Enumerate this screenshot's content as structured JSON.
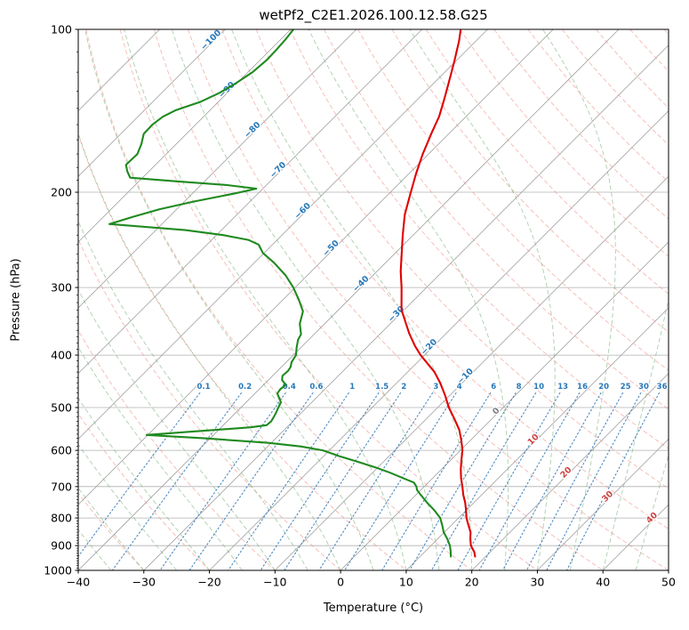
{
  "chart_data": {
    "type": "skewt",
    "title": "wetPf2_C2E1.2026.100.12.58.G25",
    "xlabel": "Temperature (°C)",
    "ylabel": "Pressure (hPa)",
    "xlim": [
      -40,
      50
    ],
    "plim": [
      100,
      1000
    ],
    "x_ticks": [
      -40,
      -30,
      -20,
      -10,
      0,
      10,
      20,
      30,
      40,
      50
    ],
    "p_ticks": [
      100,
      200,
      300,
      400,
      500,
      600,
      700,
      800,
      900,
      1000
    ],
    "skew_degrees": 45,
    "isotherms": {
      "start": -110,
      "end": 50,
      "step": 10
    },
    "isotherm_labels": [
      -100,
      -90,
      -80,
      -70,
      -60,
      -50,
      -40,
      -30,
      -20,
      -10,
      0,
      10,
      20,
      30,
      40
    ],
    "mixing_ratios_g_kg": [
      0.1,
      0.2,
      0.4,
      0.6,
      1,
      1.5,
      2,
      3,
      4,
      6,
      8,
      10,
      13,
      16,
      20,
      25,
      30,
      36
    ],
    "dry_adiabats_theta_c": {
      "start": -40,
      "end": 200,
      "step": 10
    },
    "moist_adiabats_t0_c": {
      "start": -40,
      "end": 45,
      "step": 5
    },
    "temperature_profile_p_t": [
      [
        943,
        18.4
      ],
      [
        925,
        17.6
      ],
      [
        900,
        16.1
      ],
      [
        875,
        15.0
      ],
      [
        850,
        14.0
      ],
      [
        825,
        12.6
      ],
      [
        800,
        11.2
      ],
      [
        775,
        10.0
      ],
      [
        750,
        8.7
      ],
      [
        725,
        7.2
      ],
      [
        700,
        5.8
      ],
      [
        675,
        4.3
      ],
      [
        650,
        2.9
      ],
      [
        625,
        1.6
      ],
      [
        600,
        0.3
      ],
      [
        575,
        -1.4
      ],
      [
        550,
        -3.3
      ],
      [
        525,
        -5.7
      ],
      [
        500,
        -8.3
      ],
      [
        475,
        -10.7
      ],
      [
        450,
        -13.4
      ],
      [
        430,
        -15.9
      ],
      [
        415,
        -18.2
      ],
      [
        400,
        -20.6
      ],
      [
        385,
        -22.8
      ],
      [
        365,
        -25.6
      ],
      [
        350,
        -27.6
      ],
      [
        330,
        -30.4
      ],
      [
        300,
        -33.8
      ],
      [
        280,
        -36.4
      ],
      [
        260,
        -38.9
      ],
      [
        240,
        -41.6
      ],
      [
        220,
        -44.4
      ],
      [
        200,
        -46.9
      ],
      [
        185,
        -48.9
      ],
      [
        170,
        -50.9
      ],
      [
        155,
        -52.8
      ],
      [
        145,
        -54.1
      ],
      [
        135,
        -55.9
      ],
      [
        125,
        -57.9
      ],
      [
        115,
        -60.1
      ],
      [
        105,
        -62.6
      ],
      [
        100,
        -64.1
      ]
    ],
    "dewpoint_profile_p_td": [
      [
        943,
        14.7
      ],
      [
        925,
        14.0
      ],
      [
        900,
        12.9
      ],
      [
        875,
        11.5
      ],
      [
        850,
        9.9
      ],
      [
        825,
        8.6
      ],
      [
        800,
        7.2
      ],
      [
        775,
        5.2
      ],
      [
        750,
        2.9
      ],
      [
        725,
        0.7
      ],
      [
        710,
        -0.6
      ],
      [
        700,
        -1.2
      ],
      [
        688,
        -2.2
      ],
      [
        675,
        -4.6
      ],
      [
        660,
        -7.3
      ],
      [
        645,
        -10.4
      ],
      [
        630,
        -13.9
      ],
      [
        615,
        -17.6
      ],
      [
        600,
        -21.0
      ],
      [
        590,
        -25.0
      ],
      [
        581,
        -30.6
      ],
      [
        570,
        -40.8
      ],
      [
        562,
        -50.2
      ],
      [
        553,
        -43.0
      ],
      [
        544,
        -35.5
      ],
      [
        539,
        -33.4
      ],
      [
        530,
        -33.3
      ],
      [
        519,
        -33.6
      ],
      [
        510,
        -33.9
      ],
      [
        500,
        -34.3
      ],
      [
        489,
        -34.7
      ],
      [
        471,
        -36.6
      ],
      [
        462,
        -36.8
      ],
      [
        454,
        -36.6
      ],
      [
        445,
        -37.9
      ],
      [
        437,
        -38.5
      ],
      [
        428,
        -38.4
      ],
      [
        421,
        -38.6
      ],
      [
        412,
        -39.2
      ],
      [
        400,
        -39.6
      ],
      [
        388,
        -40.6
      ],
      [
        375,
        -41.6
      ],
      [
        366,
        -42.0
      ],
      [
        350,
        -43.8
      ],
      [
        332,
        -45.2
      ],
      [
        316,
        -47.6
      ],
      [
        300,
        -50.3
      ],
      [
        285,
        -53.3
      ],
      [
        270,
        -57.0
      ],
      [
        259,
        -60.2
      ],
      [
        250,
        -62.1
      ],
      [
        245,
        -64.4
      ],
      [
        240,
        -69.0
      ],
      [
        235,
        -75.5
      ],
      [
        229,
        -88.0
      ],
      [
        222,
        -85.5
      ],
      [
        215,
        -82.6
      ],
      [
        208,
        -78.5
      ],
      [
        201,
        -73.5
      ],
      [
        197,
        -71.0
      ],
      [
        194,
        -76.0
      ],
      [
        191,
        -84.0
      ],
      [
        188,
        -91.9
      ],
      [
        183,
        -93.3
      ],
      [
        178,
        -94.5
      ],
      [
        170,
        -94.4
      ],
      [
        163,
        -95.3
      ],
      [
        156,
        -96.5
      ],
      [
        150,
        -96.6
      ],
      [
        145,
        -96.2
      ],
      [
        141,
        -95.2
      ],
      [
        136,
        -92.7
      ],
      [
        131,
        -91.2
      ],
      [
        126,
        -90.2
      ],
      [
        120,
        -89.3
      ],
      [
        114,
        -89.0
      ],
      [
        109,
        -89.1
      ],
      [
        104,
        -89.3
      ],
      [
        100,
        -89.6
      ]
    ],
    "colors": {
      "temperature": "#e00000",
      "dewpoint": "#1f8a1f",
      "isotherm": "#a0a0a0",
      "grid": "#b0b0b0",
      "dry_adiabat": "#ef948a",
      "moist_adiabat": "#74ad74",
      "mixing_line": "#3b7cb8",
      "mixing_label": "#2878b8",
      "isotherm_label_negative": "#2878b8",
      "isotherm_label_zero": "#808080",
      "isotherm_label_positive": "#cc4444",
      "axis": "#000000"
    }
  }
}
